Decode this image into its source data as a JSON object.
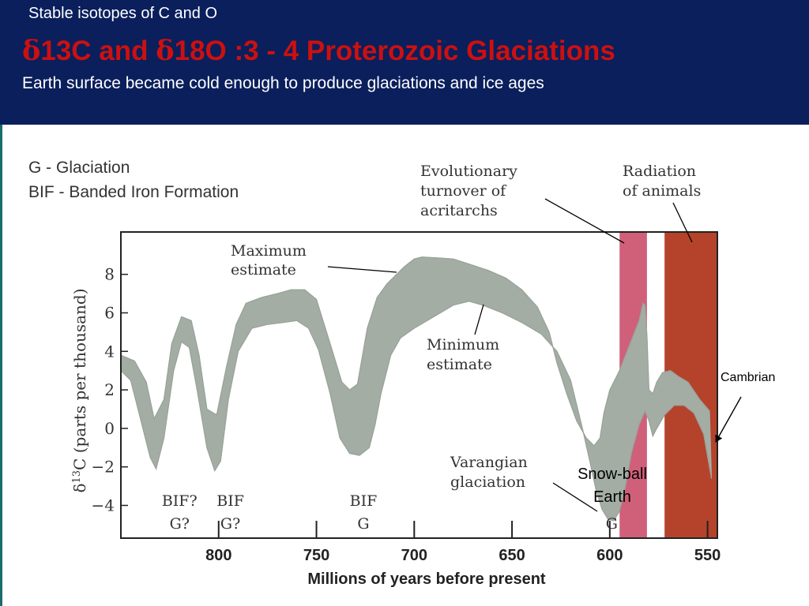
{
  "header": {
    "kicker": "Stable isotopes of C and O",
    "title_parts": [
      "δ",
      "13C and ",
      "δ",
      "18O :3 - 4 Proterozoic Glaciations"
    ],
    "subtitle": "Earth surface became cold enough to produce glaciations and ice ages",
    "background_color": "#0a1f5c",
    "title_color": "#cc1010"
  },
  "notes": {
    "line1": "G - Glaciation",
    "line2": "BIF - Banded Iron Formation"
  },
  "chart_data": {
    "type": "area",
    "xlabel": "Millions of years before present",
    "ylabel": "δ13C (parts per thousand)",
    "x_reversed": true,
    "xlim": [
      850,
      545
    ],
    "ylim": [
      -5.7,
      10.2
    ],
    "x_ticks": [
      800,
      750,
      700,
      650,
      600,
      550
    ],
    "y_ticks": [
      8,
      6,
      4,
      2,
      0,
      -2,
      -4
    ],
    "y_tick_labels": [
      "8",
      "6",
      "4",
      "2",
      "0",
      "−2",
      "−4"
    ],
    "band_color": "#a3ada4",
    "series": [
      {
        "name": "Maximum estimate",
        "x": [
          850,
          843,
          837,
          833,
          828,
          824,
          819,
          814,
          810,
          806,
          801,
          796,
          791,
          786,
          778,
          770,
          763,
          756,
          750,
          743,
          737,
          733,
          729,
          724,
          719,
          714,
          710,
          705,
          700,
          696,
          688,
          680,
          671,
          662,
          653,
          645,
          637,
          631,
          627,
          622,
          617,
          612,
          608,
          605,
          603,
          600,
          595,
          590,
          585,
          583,
          582,
          581,
          580,
          578,
          576,
          573,
          569,
          565,
          560,
          554,
          549
        ],
        "y": [
          3.8,
          3.5,
          2.4,
          0.5,
          1.5,
          4.4,
          5.8,
          5.6,
          3.8,
          1.0,
          0.7,
          3.2,
          5.4,
          6.5,
          6.8,
          7.0,
          7.2,
          7.2,
          6.7,
          4.4,
          2.4,
          2.0,
          2.3,
          5.2,
          6.8,
          7.5,
          7.9,
          8.4,
          8.8,
          8.9,
          8.85,
          8.8,
          8.5,
          8.2,
          7.8,
          7.2,
          6.3,
          5.0,
          3.4,
          1.8,
          0.4,
          -0.5,
          -0.9,
          -0.5,
          0.8,
          2.0,
          3.0,
          4.3,
          5.6,
          6.5,
          6.4,
          4.8,
          2.0,
          1.8,
          2.4,
          2.9,
          3.0,
          2.7,
          2.4,
          1.5,
          0.9
        ],
        "values": [
          3.8,
          3.5,
          2.4,
          0.5,
          1.5,
          4.4,
          5.8,
          5.6,
          3.8,
          1.0,
          0.7,
          3.2,
          5.4,
          6.5,
          6.8,
          7.0,
          7.2,
          7.2,
          6.7,
          4.4,
          2.4,
          2.0,
          2.3,
          5.2,
          6.8,
          7.5,
          7.9,
          8.4,
          8.8,
          8.9,
          8.85,
          8.8,
          8.5,
          8.2,
          7.8,
          7.2,
          6.3,
          5.0,
          3.4,
          1.8,
          0.4,
          -0.5,
          -0.9,
          -0.5,
          0.8,
          2.0,
          3.0,
          4.3,
          5.6,
          6.5,
          6.4,
          4.8,
          2.0,
          1.8,
          2.4,
          2.9,
          3.0,
          2.7,
          2.4,
          1.5,
          0.9
        ]
      },
      {
        "name": "Minimum estimate",
        "x": [
          850,
          845,
          840,
          835,
          832,
          828,
          823,
          819,
          815,
          811,
          806,
          802,
          799,
          795,
          790,
          783,
          775,
          767,
          760,
          754,
          749,
          743,
          738,
          733,
          728,
          723,
          720,
          717,
          712,
          707,
          700,
          690,
          680,
          672,
          665,
          655,
          645,
          635,
          627,
          620,
          614,
          610,
          607,
          604,
          601,
          598,
          595,
          592,
          589,
          585,
          582,
          580,
          578,
          576,
          572,
          567,
          562,
          557,
          552,
          548
        ],
        "y": [
          3.0,
          2.5,
          0.5,
          -1.5,
          -2.1,
          -0.5,
          3.0,
          4.5,
          4.2,
          2.0,
          -1.0,
          -2.2,
          -1.7,
          1.5,
          4.0,
          5.2,
          5.4,
          5.5,
          5.6,
          5.2,
          4.1,
          1.8,
          -0.5,
          -1.3,
          -1.4,
          -1.0,
          0.2,
          1.8,
          3.8,
          4.7,
          5.2,
          5.8,
          6.4,
          6.6,
          6.4,
          6.0,
          5.5,
          4.9,
          4.0,
          2.5,
          0.0,
          -1.8,
          -3.2,
          -4.2,
          -4.7,
          -4.8,
          -4.3,
          -3.0,
          -1.3,
          0.2,
          0.9,
          0.4,
          -0.4,
          0.0,
          0.7,
          1.2,
          1.2,
          0.8,
          -0.3,
          -2.6
        ],
        "values": [
          3.0,
          2.5,
          0.5,
          -1.5,
          -2.1,
          -0.5,
          3.0,
          4.5,
          4.2,
          2.0,
          -1.0,
          -2.2,
          -1.7,
          1.5,
          4.0,
          5.2,
          5.4,
          5.5,
          5.6,
          5.2,
          4.1,
          1.8,
          -0.5,
          -1.3,
          -1.4,
          -1.0,
          0.2,
          1.8,
          3.8,
          4.7,
          5.2,
          5.8,
          6.4,
          6.6,
          6.4,
          6.0,
          5.5,
          4.9,
          4.0,
          2.5,
          0.0,
          -1.8,
          -3.2,
          -4.2,
          -4.7,
          -4.8,
          -4.3,
          -3.0,
          -1.3,
          0.2,
          0.9,
          0.4,
          -0.4,
          0.0,
          0.7,
          1.2,
          1.2,
          0.8,
          -0.3,
          -2.6
        ]
      }
    ],
    "shaded_ranges": [
      {
        "label": "Evolutionary turnover of acritarchs",
        "from": 595,
        "to": 581,
        "color": "#d0607a"
      },
      {
        "label": "Radiation of animals",
        "from": 572,
        "to": 545,
        "color": "#b5432b"
      }
    ],
    "event_markers": [
      {
        "x": 820,
        "label_top": "BIF?",
        "label_bottom": "G?"
      },
      {
        "x": 794,
        "label_top": "BIF",
        "label_bottom": "G?"
      },
      {
        "x": 726,
        "label_top": "BIF",
        "label_bottom": "G"
      },
      {
        "x": 599,
        "label_top": "",
        "label_bottom": "G"
      }
    ],
    "annotations": {
      "maximum": "Maximum estimate",
      "minimum": "Minimum estimate",
      "varangian": [
        "Varangian",
        "glaciation"
      ],
      "turnover": [
        "Evolutionary",
        "turnover of",
        "acritarchs"
      ],
      "radiation": [
        "Radiation",
        "of animals"
      ],
      "snowball": [
        "Snow-ball",
        "Earth"
      ],
      "cambrian": "Cambrian"
    }
  }
}
